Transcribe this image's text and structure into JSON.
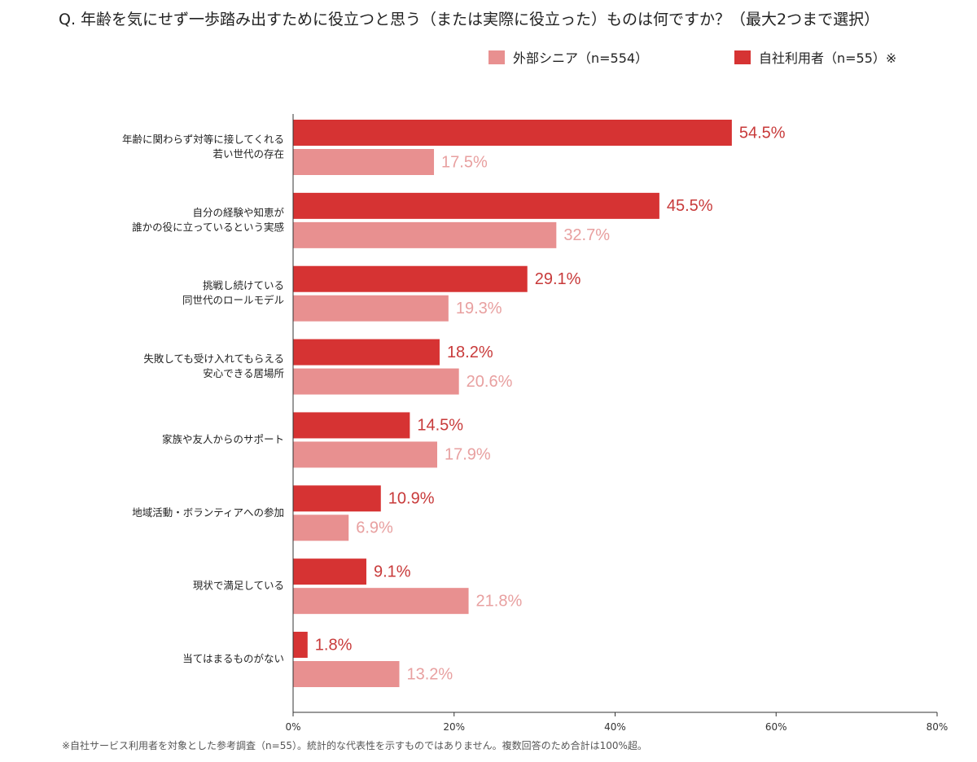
{
  "chart_data": {
    "type": "bar",
    "orientation": "horizontal",
    "title": "Q. 年齢を気にせず一歩踏み出すために役立つと思う（または実際に役立った）ものは何ですか？（最大2つまで選択）",
    "categories": [
      [
        "年齢に関わらず対等に接してくれる",
        "若い世代の存在"
      ],
      [
        "自分の経験や知恵が",
        "誰かの役に立っているという実感"
      ],
      [
        "挑戦し続けている",
        "同世代のロールモデル"
      ],
      [
        "失敗しても受け入れてもらえる",
        "安心できる居場所"
      ],
      [
        "家族や友人からのサポート"
      ],
      [
        "地域活動・ボランティアへの参加"
      ],
      [
        "現状で満足している"
      ],
      [
        "当てはまるものがない"
      ]
    ],
    "series": [
      {
        "name": "自社利用者（n=55）※",
        "color": "#d63333",
        "label_color": "#c83a3a",
        "values": [
          54.5,
          45.5,
          29.1,
          18.2,
          14.5,
          10.9,
          9.1,
          1.8
        ]
      },
      {
        "name": "外部シニア（n=554）",
        "color": "#e89090",
        "label_color": "#e8a0a0",
        "values": [
          17.5,
          32.7,
          19.3,
          20.6,
          17.9,
          6.9,
          21.8,
          13.2
        ]
      }
    ],
    "value_suffix": "%",
    "xlim": [
      0,
      80
    ],
    "xticks": [
      "0%",
      "20%",
      "40%",
      "60%",
      "80%"
    ],
    "grid": false,
    "legend_position": "top-right"
  },
  "legend": {
    "external_label": "外部シニア（n=554）",
    "internal_label": "自社利用者（n=55）※"
  },
  "footnote": "※自社サービス利用者を対象とした参考調査（n=55）。統計的な代表性を示すものではありません。複数回答のため合計は100%超。"
}
